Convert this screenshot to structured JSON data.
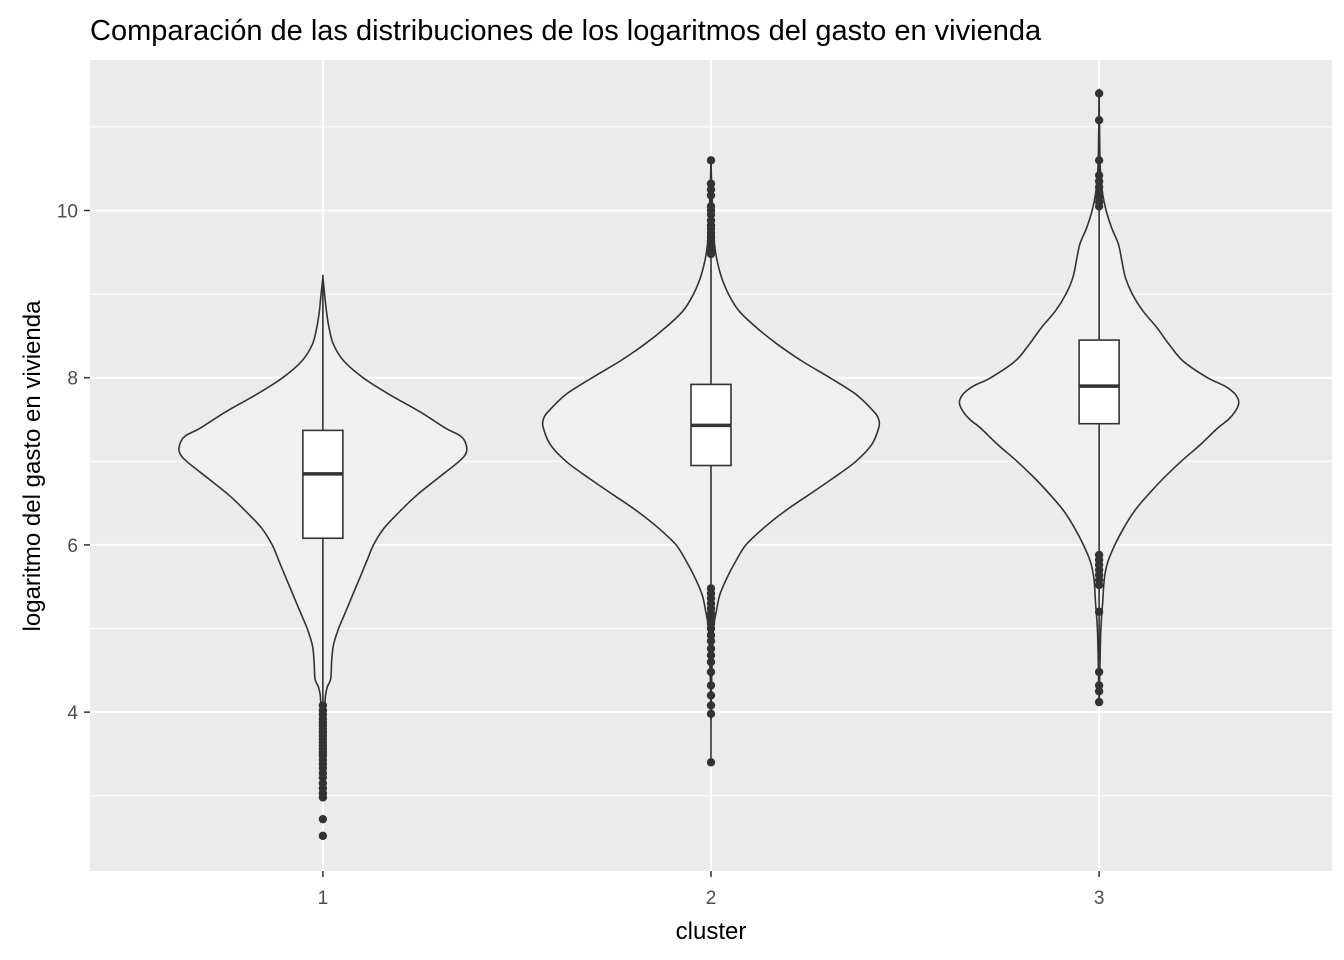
{
  "chart_data": {
    "type": "violin",
    "title": "Comparación de las distribuciones de los logaritmos del gasto en vivienda",
    "xlabel": "cluster",
    "ylabel": "logaritmo del gasto en vivienda",
    "categories": [
      "1",
      "2",
      "3"
    ],
    "ylim": [
      2.1,
      11.8
    ],
    "yticks": [
      4,
      6,
      8,
      10
    ],
    "ytick_labels": [
      "4",
      "6",
      "8",
      "10"
    ],
    "grid": true,
    "panel_background": "#ebebeb",
    "violin_fill": "#f0f0f0",
    "line_color": "#333333",
    "groups": [
      {
        "category": "1",
        "violin_profile": [
          [
            3.6,
            0.0
          ],
          [
            3.8,
            0.005
          ],
          [
            4.0,
            0.01
          ],
          [
            4.1,
            0.012
          ],
          [
            4.2,
            0.015
          ],
          [
            4.3,
            0.025
          ],
          [
            4.4,
            0.045
          ],
          [
            4.6,
            0.05
          ],
          [
            4.8,
            0.06
          ],
          [
            5.0,
            0.09
          ],
          [
            5.2,
            0.13
          ],
          [
            5.4,
            0.17
          ],
          [
            5.6,
            0.21
          ],
          [
            5.8,
            0.25
          ],
          [
            6.0,
            0.29
          ],
          [
            6.2,
            0.35
          ],
          [
            6.4,
            0.44
          ],
          [
            6.6,
            0.54
          ],
          [
            6.8,
            0.66
          ],
          [
            7.0,
            0.78
          ],
          [
            7.1,
            0.82
          ],
          [
            7.2,
            0.82
          ],
          [
            7.3,
            0.79
          ],
          [
            7.4,
            0.7
          ],
          [
            7.6,
            0.55
          ],
          [
            7.8,
            0.38
          ],
          [
            8.0,
            0.23
          ],
          [
            8.2,
            0.12
          ],
          [
            8.4,
            0.06
          ],
          [
            8.6,
            0.035
          ],
          [
            8.8,
            0.02
          ],
          [
            9.0,
            0.01
          ],
          [
            9.2,
            0.0
          ]
        ],
        "box": {
          "q1": 6.08,
          "median": 6.85,
          "q3": 7.37,
          "whisker_low": 4.1,
          "whisker_high": 9.2
        },
        "outliers": [
          4.08,
          4.02,
          3.97,
          3.92,
          3.88,
          3.84,
          3.8,
          3.76,
          3.72,
          3.68,
          3.64,
          3.6,
          3.56,
          3.52,
          3.48,
          3.43,
          3.38,
          3.33,
          3.27,
          3.22,
          3.15,
          3.09,
          3.03,
          2.98,
          2.72,
          2.52
        ]
      },
      {
        "category": "2",
        "violin_profile": [
          [
            3.9,
            0.0
          ],
          [
            4.5,
            0.005
          ],
          [
            5.0,
            0.015
          ],
          [
            5.2,
            0.03
          ],
          [
            5.4,
            0.05
          ],
          [
            5.6,
            0.09
          ],
          [
            5.8,
            0.14
          ],
          [
            6.0,
            0.2
          ],
          [
            6.2,
            0.3
          ],
          [
            6.4,
            0.42
          ],
          [
            6.6,
            0.56
          ],
          [
            6.8,
            0.7
          ],
          [
            7.0,
            0.83
          ],
          [
            7.2,
            0.92
          ],
          [
            7.4,
            0.96
          ],
          [
            7.5,
            0.96
          ],
          [
            7.6,
            0.93
          ],
          [
            7.8,
            0.83
          ],
          [
            8.0,
            0.68
          ],
          [
            8.2,
            0.52
          ],
          [
            8.4,
            0.38
          ],
          [
            8.6,
            0.26
          ],
          [
            8.8,
            0.16
          ],
          [
            9.0,
            0.1
          ],
          [
            9.2,
            0.06
          ],
          [
            9.4,
            0.035
          ],
          [
            9.6,
            0.02
          ],
          [
            9.8,
            0.015
          ],
          [
            10.0,
            0.01
          ],
          [
            10.3,
            0.004
          ],
          [
            10.6,
            0.0
          ]
        ],
        "box": {
          "q1": 6.95,
          "median": 7.43,
          "q3": 7.92,
          "whisker_low": 3.4,
          "whisker_high": 10.6
        },
        "outliers": [
          10.6,
          10.32,
          10.25,
          10.18,
          10.05,
          10.0,
          9.95,
          9.88,
          9.82,
          9.78,
          9.73,
          9.68,
          9.63,
          9.58,
          9.53,
          9.48,
          5.48,
          5.42,
          5.36,
          5.3,
          5.24,
          5.18,
          5.12,
          5.06,
          5.0,
          4.92,
          4.85,
          4.76,
          4.68,
          4.6,
          4.48,
          4.32,
          4.2,
          4.08,
          3.98,
          3.4
        ]
      },
      {
        "category": "3",
        "violin_profile": [
          [
            4.1,
            0.0
          ],
          [
            4.6,
            0.005
          ],
          [
            5.0,
            0.01
          ],
          [
            5.3,
            0.02
          ],
          [
            5.6,
            0.03
          ],
          [
            5.8,
            0.05
          ],
          [
            6.0,
            0.09
          ],
          [
            6.2,
            0.14
          ],
          [
            6.4,
            0.2
          ],
          [
            6.6,
            0.28
          ],
          [
            6.8,
            0.37
          ],
          [
            7.0,
            0.47
          ],
          [
            7.2,
            0.58
          ],
          [
            7.4,
            0.68
          ],
          [
            7.5,
            0.74
          ],
          [
            7.6,
            0.78
          ],
          [
            7.7,
            0.8
          ],
          [
            7.8,
            0.78
          ],
          [
            7.9,
            0.72
          ],
          [
            8.0,
            0.62
          ],
          [
            8.2,
            0.48
          ],
          [
            8.4,
            0.4
          ],
          [
            8.6,
            0.33
          ],
          [
            8.8,
            0.25
          ],
          [
            9.0,
            0.19
          ],
          [
            9.2,
            0.15
          ],
          [
            9.4,
            0.13
          ],
          [
            9.6,
            0.11
          ],
          [
            9.8,
            0.07
          ],
          [
            10.0,
            0.04
          ],
          [
            10.2,
            0.02
          ],
          [
            10.4,
            0.01
          ],
          [
            10.6,
            0.005
          ],
          [
            11.0,
            0.002
          ],
          [
            11.4,
            0.0
          ]
        ],
        "box": {
          "q1": 7.45,
          "median": 7.9,
          "q3": 8.45,
          "whisker_low": 4.1,
          "whisker_high": 11.4
        },
        "outliers": [
          11.4,
          11.08,
          10.6,
          10.42,
          10.35,
          10.28,
          10.22,
          10.16,
          10.1,
          10.05,
          5.88,
          5.82,
          5.76,
          5.7,
          5.64,
          5.58,
          5.52,
          5.2,
          4.48,
          4.32,
          4.25,
          4.12
        ]
      }
    ],
    "max_width_fraction": 0.9
  }
}
